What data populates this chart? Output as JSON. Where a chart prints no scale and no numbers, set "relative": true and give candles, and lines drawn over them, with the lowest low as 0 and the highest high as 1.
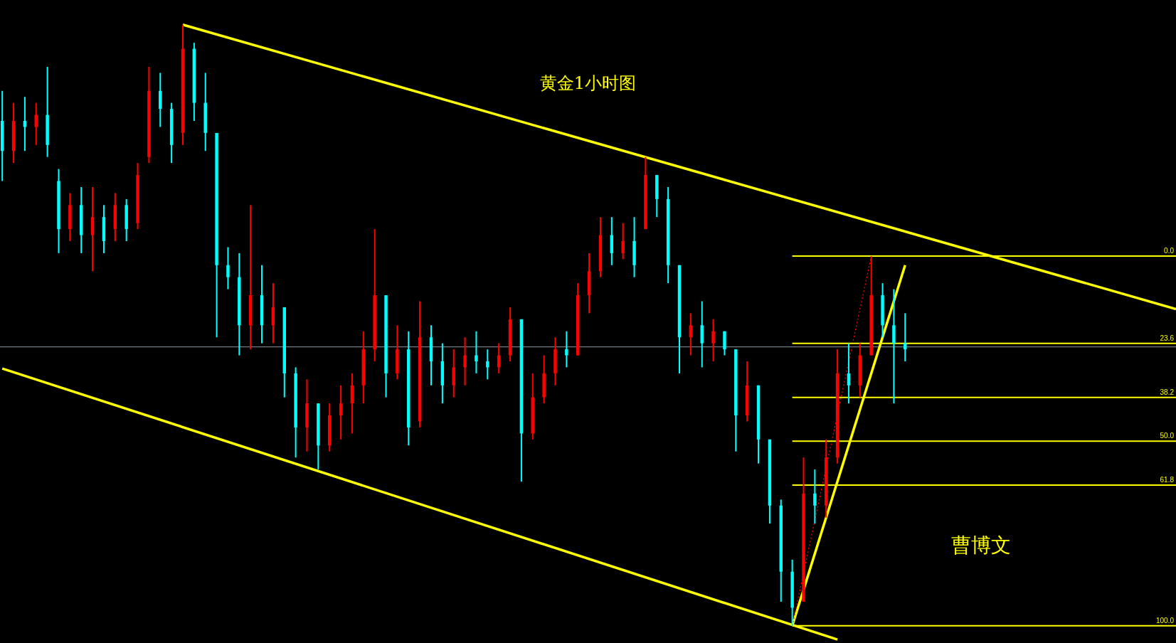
{
  "chart_data": {
    "type": "candlestick",
    "title": "黄金1小时图",
    "relative": true,
    "annotations": [
      "曹博文"
    ],
    "categories": [
      null,
      null,
      null,
      null,
      null,
      null,
      null,
      null,
      null,
      null,
      null,
      null,
      null,
      null,
      null,
      null,
      null,
      null,
      null,
      null,
      null,
      null,
      null,
      null,
      null,
      null,
      null,
      null,
      null,
      null,
      null,
      null,
      null,
      null,
      null,
      null,
      null,
      null,
      null,
      null,
      null,
      null,
      null,
      null,
      null,
      null,
      null,
      null,
      null,
      null,
      null,
      null,
      null,
      null,
      null,
      null,
      null,
      null,
      null,
      null,
      null,
      null,
      null,
      null,
      null,
      null,
      null,
      null,
      null,
      null,
      null,
      null,
      null,
      null,
      null,
      null,
      null,
      null,
      null,
      null,
      null,
      null,
      null,
      null,
      null,
      null,
      null,
      null,
      null,
      null,
      null,
      null,
      null,
      null,
      null,
      null,
      null,
      null,
      null,
      null,
      null,
      null,
      null,
      null,
      null
    ],
    "ohlc": [
      [
        0.84,
        0.89,
        0.74,
        0.79
      ],
      [
        0.79,
        0.87,
        0.77,
        0.84
      ],
      [
        0.84,
        0.88,
        0.79,
        0.83
      ],
      [
        0.83,
        0.87,
        0.8,
        0.85
      ],
      [
        0.85,
        0.93,
        0.78,
        0.8
      ],
      [
        0.74,
        0.76,
        0.62,
        0.66
      ],
      [
        0.66,
        0.72,
        0.64,
        0.7
      ],
      [
        0.7,
        0.73,
        0.62,
        0.65
      ],
      [
        0.65,
        0.73,
        0.59,
        0.68
      ],
      [
        0.68,
        0.7,
        0.62,
        0.64
      ],
      [
        0.66,
        0.72,
        0.64,
        0.7
      ],
      [
        0.7,
        0.71,
        0.64,
        0.66
      ],
      [
        0.67,
        0.77,
        0.66,
        0.75
      ],
      [
        0.78,
        0.93,
        0.77,
        0.89
      ],
      [
        0.89,
        0.92,
        0.83,
        0.86
      ],
      [
        0.86,
        0.87,
        0.77,
        0.8
      ],
      [
        0.82,
        1.0,
        0.8,
        0.96
      ],
      [
        0.96,
        0.97,
        0.84,
        0.87
      ],
      [
        0.87,
        0.92,
        0.79,
        0.82
      ],
      [
        0.82,
        0.82,
        0.48,
        0.6
      ],
      [
        0.6,
        0.63,
        0.56,
        0.58
      ],
      [
        0.58,
        0.62,
        0.45,
        0.5
      ],
      [
        0.5,
        0.7,
        0.46,
        0.55
      ],
      [
        0.55,
        0.6,
        0.47,
        0.5
      ],
      [
        0.5,
        0.57,
        0.47,
        0.53
      ],
      [
        0.53,
        0.53,
        0.38,
        0.42
      ],
      [
        0.42,
        0.43,
        0.28,
        0.33
      ],
      [
        0.33,
        0.41,
        0.29,
        0.37
      ],
      [
        0.37,
        0.37,
        0.26,
        0.3
      ],
      [
        0.3,
        0.37,
        0.29,
        0.35
      ],
      [
        0.35,
        0.4,
        0.31,
        0.37
      ],
      [
        0.37,
        0.42,
        0.32,
        0.4
      ],
      [
        0.4,
        0.49,
        0.37,
        0.46
      ],
      [
        0.46,
        0.66,
        0.44,
        0.55
      ],
      [
        0.55,
        0.55,
        0.38,
        0.42
      ],
      [
        0.42,
        0.5,
        0.41,
        0.46
      ],
      [
        0.46,
        0.49,
        0.3,
        0.33
      ],
      [
        0.34,
        0.54,
        0.33,
        0.48
      ],
      [
        0.48,
        0.5,
        0.4,
        0.44
      ],
      [
        0.44,
        0.47,
        0.37,
        0.4
      ],
      [
        0.4,
        0.46,
        0.38,
        0.43
      ],
      [
        0.43,
        0.48,
        0.4,
        0.45
      ],
      [
        0.45,
        0.49,
        0.42,
        0.44
      ],
      [
        0.44,
        0.46,
        0.41,
        0.43
      ],
      [
        0.43,
        0.47,
        0.42,
        0.45
      ],
      [
        0.45,
        0.53,
        0.44,
        0.51
      ],
      [
        0.51,
        0.51,
        0.24,
        0.32
      ],
      [
        0.32,
        0.42,
        0.31,
        0.38
      ],
      [
        0.38,
        0.45,
        0.37,
        0.42
      ],
      [
        0.42,
        0.48,
        0.4,
        0.46
      ],
      [
        0.46,
        0.49,
        0.43,
        0.45
      ],
      [
        0.45,
        0.57,
        0.45,
        0.55
      ],
      [
        0.55,
        0.62,
        0.52,
        0.59
      ],
      [
        0.59,
        0.68,
        0.58,
        0.65
      ],
      [
        0.65,
        0.68,
        0.6,
        0.62
      ],
      [
        0.62,
        0.67,
        0.61,
        0.64
      ],
      [
        0.64,
        0.68,
        0.58,
        0.6
      ],
      [
        0.66,
        0.78,
        0.66,
        0.75
      ],
      [
        0.75,
        0.75,
        0.68,
        0.71
      ],
      [
        0.71,
        0.73,
        0.57,
        0.6
      ],
      [
        0.6,
        0.6,
        0.42,
        0.48
      ],
      [
        0.48,
        0.52,
        0.45,
        0.5
      ],
      [
        0.5,
        0.54,
        0.43,
        0.47
      ],
      [
        0.47,
        0.51,
        0.44,
        0.49
      ],
      [
        0.49,
        0.49,
        0.45,
        0.46
      ],
      [
        0.46,
        0.46,
        0.29,
        0.35
      ],
      [
        0.35,
        0.44,
        0.34,
        0.4
      ],
      [
        0.4,
        0.4,
        0.27,
        0.31
      ],
      [
        0.31,
        0.31,
        0.17,
        0.2
      ],
      [
        0.2,
        0.21,
        0.04,
        0.09
      ],
      [
        0.09,
        0.11,
        0.0,
        0.03
      ],
      [
        0.04,
        0.28,
        0.04,
        0.22
      ],
      [
        0.22,
        0.26,
        0.17,
        0.2
      ],
      [
        0.2,
        0.31,
        0.18,
        0.28
      ],
      [
        0.28,
        0.46,
        0.27,
        0.42
      ],
      [
        0.42,
        0.47,
        0.37,
        0.4
      ],
      [
        0.4,
        0.47,
        0.38,
        0.45
      ],
      [
        0.45,
        0.615,
        0.45,
        0.55
      ],
      [
        0.55,
        0.57,
        0.48,
        0.5
      ],
      [
        0.5,
        0.56,
        0.37,
        0.47
      ],
      [
        0.47,
        0.52,
        0.44,
        0.46
      ],
      null,
      null,
      null,
      null,
      null,
      null,
      null,
      null,
      null,
      null,
      null,
      null,
      null,
      null,
      null,
      null,
      null,
      null,
      null,
      null,
      null,
      null,
      null,
      null
    ],
    "colors": [
      "#00ffff",
      "#ff0000",
      "#00ffff",
      "#ff0000",
      "#00ffff",
      "#00ffff",
      "#ff0000",
      "#00ffff",
      "#ff0000",
      "#00ffff",
      "#ff0000",
      "#00ffff",
      "#ff0000",
      "#ff0000",
      "#00ffff",
      "#00ffff",
      "#ff0000",
      "#00ffff",
      "#00ffff",
      "#00ffff",
      "#00ffff",
      "#00ffff",
      "#ff0000",
      "#00ffff",
      "#ff0000",
      "#00ffff",
      "#00ffff",
      "#ff0000",
      "#00ffff",
      "#ff0000",
      "#ff0000",
      "#ff0000",
      "#ff0000",
      "#ff0000",
      "#00ffff",
      "#ff0000",
      "#00ffff",
      "#ff0000",
      "#00ffff",
      "#00ffff",
      "#ff0000",
      "#ff0000",
      "#00ffff",
      "#00ffff",
      "#ff0000",
      "#ff0000",
      "#00ffff",
      "#ff0000",
      "#ff0000",
      "#ff0000",
      "#00ffff",
      "#ff0000",
      "#ff0000",
      "#ff0000",
      "#00ffff",
      "#ff0000",
      "#00ffff",
      "#ff0000",
      "#00ffff",
      "#00ffff",
      "#00ffff",
      "#ff0000",
      "#00ffff",
      "#ff0000",
      "#00ffff",
      "#00ffff",
      "#ff0000",
      "#00ffff",
      "#00ffff",
      "#00ffff",
      "#00ffff",
      "#ff0000",
      "#00ffff",
      "#ff0000",
      "#ff0000",
      "#00ffff",
      "#ff0000",
      "#ff0000",
      "#00ffff",
      "#00ffff",
      "#00ffff",
      null,
      null,
      null,
      null,
      null,
      null,
      null,
      null,
      null,
      null,
      null,
      null,
      null,
      null,
      null,
      null,
      null,
      null,
      null,
      null,
      null,
      null,
      null,
      null
    ],
    "ref_lines": [
      {
        "axis": "y",
        "value": 0.464,
        "color": "#8c9aa8"
      }
    ],
    "series": [
      {
        "type": "line",
        "color": "#ffff00",
        "values": [
          null,
          null,
          null,
          null,
          null,
          null,
          null,
          null,
          null,
          null,
          null,
          null,
          null,
          null,
          null,
          null,
          1.0,
          null,
          null,
          null,
          null,
          null,
          null,
          null,
          null,
          null,
          null,
          null,
          null,
          null,
          null,
          null,
          null,
          null,
          null,
          null,
          null,
          null,
          null,
          null,
          null,
          null,
          null,
          null,
          null,
          null,
          null,
          null,
          null,
          null,
          null,
          null,
          null,
          null,
          null,
          null,
          null,
          null,
          null,
          null,
          null,
          null,
          null,
          null,
          null,
          null,
          null,
          null,
          null,
          null,
          null,
          null,
          null,
          null,
          null,
          null,
          null,
          null,
          null,
          null,
          null,
          null,
          null,
          null,
          null,
          null,
          null,
          null,
          null,
          null,
          null,
          null,
          null,
          null,
          null,
          null,
          null,
          null,
          null,
          null,
          null,
          null,
          null,
          null,
          0.527
        ]
      },
      {
        "type": "line",
        "color": "#ffff00",
        "values": [
          0.428,
          null,
          null,
          null,
          null,
          null,
          null,
          null,
          null,
          null,
          null,
          null,
          null,
          null,
          null,
          null,
          null,
          null,
          null,
          null,
          null,
          null,
          null,
          null,
          null,
          null,
          null,
          null,
          null,
          null,
          null,
          null,
          null,
          null,
          null,
          null,
          null,
          null,
          null,
          null,
          null,
          null,
          null,
          null,
          null,
          null,
          null,
          null,
          null,
          null,
          null,
          null,
          null,
          null,
          null,
          null,
          null,
          null,
          null,
          null,
          null,
          null,
          null,
          null,
          null,
          null,
          null,
          null,
          null,
          null,
          null,
          null,
          null,
          null,
          -0.023,
          null,
          null,
          null,
          null,
          null,
          null,
          null,
          null,
          null,
          null,
          null,
          null,
          null,
          null,
          null,
          null,
          null,
          null,
          null,
          null,
          null,
          null,
          null,
          null,
          null,
          null,
          null,
          null,
          null,
          null
        ]
      },
      {
        "type": "line",
        "color": "#ffff00",
        "values": [
          null,
          null,
          null,
          null,
          null,
          null,
          null,
          null,
          null,
          null,
          null,
          null,
          null,
          null,
          null,
          null,
          null,
          null,
          null,
          null,
          null,
          null,
          null,
          null,
          null,
          null,
          null,
          null,
          null,
          null,
          null,
          null,
          null,
          null,
          null,
          null,
          null,
          null,
          null,
          null,
          null,
          null,
          null,
          null,
          null,
          null,
          null,
          null,
          null,
          null,
          null,
          null,
          null,
          null,
          null,
          null,
          null,
          null,
          null,
          null,
          null,
          null,
          null,
          null,
          null,
          null,
          null,
          null,
          null,
          null,
          0.0,
          null,
          null,
          null,
          null,
          null,
          null,
          null,
          null,
          null,
          0.6,
          null,
          null,
          null,
          null,
          null,
          null,
          null,
          null,
          null,
          null,
          null,
          null,
          null,
          null,
          null,
          null,
          null,
          null,
          null,
          null,
          null,
          null,
          null,
          null
        ]
      },
      {
        "type": "line",
        "color": "#ff0000",
        "line_style": "dotted",
        "values": [
          null,
          null,
          null,
          null,
          null,
          null,
          null,
          null,
          null,
          null,
          null,
          null,
          null,
          null,
          null,
          null,
          null,
          null,
          null,
          null,
          null,
          null,
          null,
          null,
          null,
          null,
          null,
          null,
          null,
          null,
          null,
          null,
          null,
          null,
          null,
          null,
          null,
          null,
          null,
          null,
          null,
          null,
          null,
          null,
          null,
          null,
          null,
          null,
          null,
          null,
          null,
          null,
          null,
          null,
          null,
          null,
          null,
          null,
          null,
          null,
          null,
          null,
          null,
          null,
          null,
          null,
          null,
          null,
          null,
          null,
          0.0,
          null,
          null,
          null,
          null,
          null,
          null,
          0.615,
          null,
          null,
          null,
          null,
          null,
          null,
          null,
          null,
          null,
          null,
          null,
          null,
          null,
          null,
          null,
          null,
          null,
          null,
          null,
          null,
          null,
          null,
          null,
          null,
          null,
          null,
          null
        ]
      },
      {
        "type": "line",
        "name": "0.0",
        "color": "#ffff00",
        "values": [
          null,
          null,
          null,
          null,
          null,
          null,
          null,
          null,
          null,
          null,
          null,
          null,
          null,
          null,
          null,
          null,
          null,
          null,
          null,
          null,
          null,
          null,
          null,
          null,
          null,
          null,
          null,
          null,
          null,
          null,
          null,
          null,
          null,
          null,
          null,
          null,
          null,
          null,
          null,
          null,
          null,
          null,
          null,
          null,
          null,
          null,
          null,
          null,
          null,
          null,
          null,
          null,
          null,
          null,
          null,
          null,
          null,
          null,
          null,
          null,
          null,
          null,
          null,
          null,
          null,
          null,
          null,
          null,
          null,
          null,
          0.615,
          null,
          null,
          null,
          null,
          null,
          null,
          null,
          null,
          null,
          null,
          null,
          null,
          null,
          null,
          null,
          null,
          null,
          null,
          null,
          null,
          null,
          null,
          null,
          null,
          null,
          null,
          null,
          null,
          null,
          null,
          null,
          null,
          null,
          0.615
        ]
      },
      {
        "type": "line",
        "name": "23.6",
        "color": "#ffff00",
        "values": [
          null,
          null,
          null,
          null,
          null,
          null,
          null,
          null,
          null,
          null,
          null,
          null,
          null,
          null,
          null,
          null,
          null,
          null,
          null,
          null,
          null,
          null,
          null,
          null,
          null,
          null,
          null,
          null,
          null,
          null,
          null,
          null,
          null,
          null,
          null,
          null,
          null,
          null,
          null,
          null,
          null,
          null,
          null,
          null,
          null,
          null,
          null,
          null,
          null,
          null,
          null,
          null,
          null,
          null,
          null,
          null,
          null,
          null,
          null,
          null,
          null,
          null,
          null,
          null,
          null,
          null,
          null,
          null,
          null,
          null,
          0.47,
          null,
          null,
          null,
          null,
          null,
          null,
          null,
          null,
          null,
          null,
          null,
          null,
          null,
          null,
          null,
          null,
          null,
          null,
          null,
          null,
          null,
          null,
          null,
          null,
          null,
          null,
          null,
          null,
          null,
          null,
          null,
          null,
          null,
          0.47
        ]
      },
      {
        "type": "line",
        "name": "38.2",
        "color": "#ffff00",
        "values": [
          null,
          null,
          null,
          null,
          null,
          null,
          null,
          null,
          null,
          null,
          null,
          null,
          null,
          null,
          null,
          null,
          null,
          null,
          null,
          null,
          null,
          null,
          null,
          null,
          null,
          null,
          null,
          null,
          null,
          null,
          null,
          null,
          null,
          null,
          null,
          null,
          null,
          null,
          null,
          null,
          null,
          null,
          null,
          null,
          null,
          null,
          null,
          null,
          null,
          null,
          null,
          null,
          null,
          null,
          null,
          null,
          null,
          null,
          null,
          null,
          null,
          null,
          null,
          null,
          null,
          null,
          null,
          null,
          null,
          null,
          0.38,
          null,
          null,
          null,
          null,
          null,
          null,
          null,
          null,
          null,
          null,
          null,
          null,
          null,
          null,
          null,
          null,
          null,
          null,
          null,
          null,
          null,
          null,
          null,
          null,
          null,
          null,
          null,
          null,
          null,
          null,
          null,
          null,
          null,
          0.38
        ]
      },
      {
        "type": "line",
        "name": "50.0",
        "color": "#ffff00",
        "values": [
          null,
          null,
          null,
          null,
          null,
          null,
          null,
          null,
          null,
          null,
          null,
          null,
          null,
          null,
          null,
          null,
          null,
          null,
          null,
          null,
          null,
          null,
          null,
          null,
          null,
          null,
          null,
          null,
          null,
          null,
          null,
          null,
          null,
          null,
          null,
          null,
          null,
          null,
          null,
          null,
          null,
          null,
          null,
          null,
          null,
          null,
          null,
          null,
          null,
          null,
          null,
          null,
          null,
          null,
          null,
          null,
          null,
          null,
          null,
          null,
          null,
          null,
          null,
          null,
          null,
          null,
          null,
          null,
          null,
          null,
          0.307,
          null,
          null,
          null,
          null,
          null,
          null,
          null,
          null,
          null,
          null,
          null,
          null,
          null,
          null,
          null,
          null,
          null,
          null,
          null,
          null,
          null,
          null,
          null,
          null,
          null,
          null,
          null,
          null,
          null,
          null,
          null,
          null,
          null,
          0.307
        ]
      },
      {
        "type": "line",
        "name": "61.8",
        "color": "#ffff00",
        "values": [
          null,
          null,
          null,
          null,
          null,
          null,
          null,
          null,
          null,
          null,
          null,
          null,
          null,
          null,
          null,
          null,
          null,
          null,
          null,
          null,
          null,
          null,
          null,
          null,
          null,
          null,
          null,
          null,
          null,
          null,
          null,
          null,
          null,
          null,
          null,
          null,
          null,
          null,
          null,
          null,
          null,
          null,
          null,
          null,
          null,
          null,
          null,
          null,
          null,
          null,
          null,
          null,
          null,
          null,
          null,
          null,
          null,
          null,
          null,
          null,
          null,
          null,
          null,
          null,
          null,
          null,
          null,
          null,
          null,
          null,
          0.234,
          null,
          null,
          null,
          null,
          null,
          null,
          null,
          null,
          null,
          null,
          null,
          null,
          null,
          null,
          null,
          null,
          null,
          null,
          null,
          null,
          null,
          null,
          null,
          null,
          null,
          null,
          null,
          null,
          null,
          null,
          null,
          null,
          null,
          0.234
        ]
      },
      {
        "type": "line",
        "name": "100.0",
        "color": "#ffff00",
        "values": [
          null,
          null,
          null,
          null,
          null,
          null,
          null,
          null,
          null,
          null,
          null,
          null,
          null,
          null,
          null,
          null,
          null,
          null,
          null,
          null,
          null,
          null,
          null,
          null,
          null,
          null,
          null,
          null,
          null,
          null,
          null,
          null,
          null,
          null,
          null,
          null,
          null,
          null,
          null,
          null,
          null,
          null,
          null,
          null,
          null,
          null,
          null,
          null,
          null,
          null,
          null,
          null,
          null,
          null,
          null,
          null,
          null,
          null,
          null,
          null,
          null,
          null,
          null,
          null,
          null,
          null,
          null,
          null,
          null,
          null,
          0.0,
          null,
          null,
          null,
          null,
          null,
          null,
          null,
          null,
          null,
          null,
          null,
          null,
          null,
          null,
          null,
          null,
          null,
          null,
          null,
          null,
          null,
          null,
          null,
          null,
          null,
          null,
          null,
          null,
          null,
          null,
          null,
          null,
          null,
          0.0
        ]
      }
    ]
  }
}
